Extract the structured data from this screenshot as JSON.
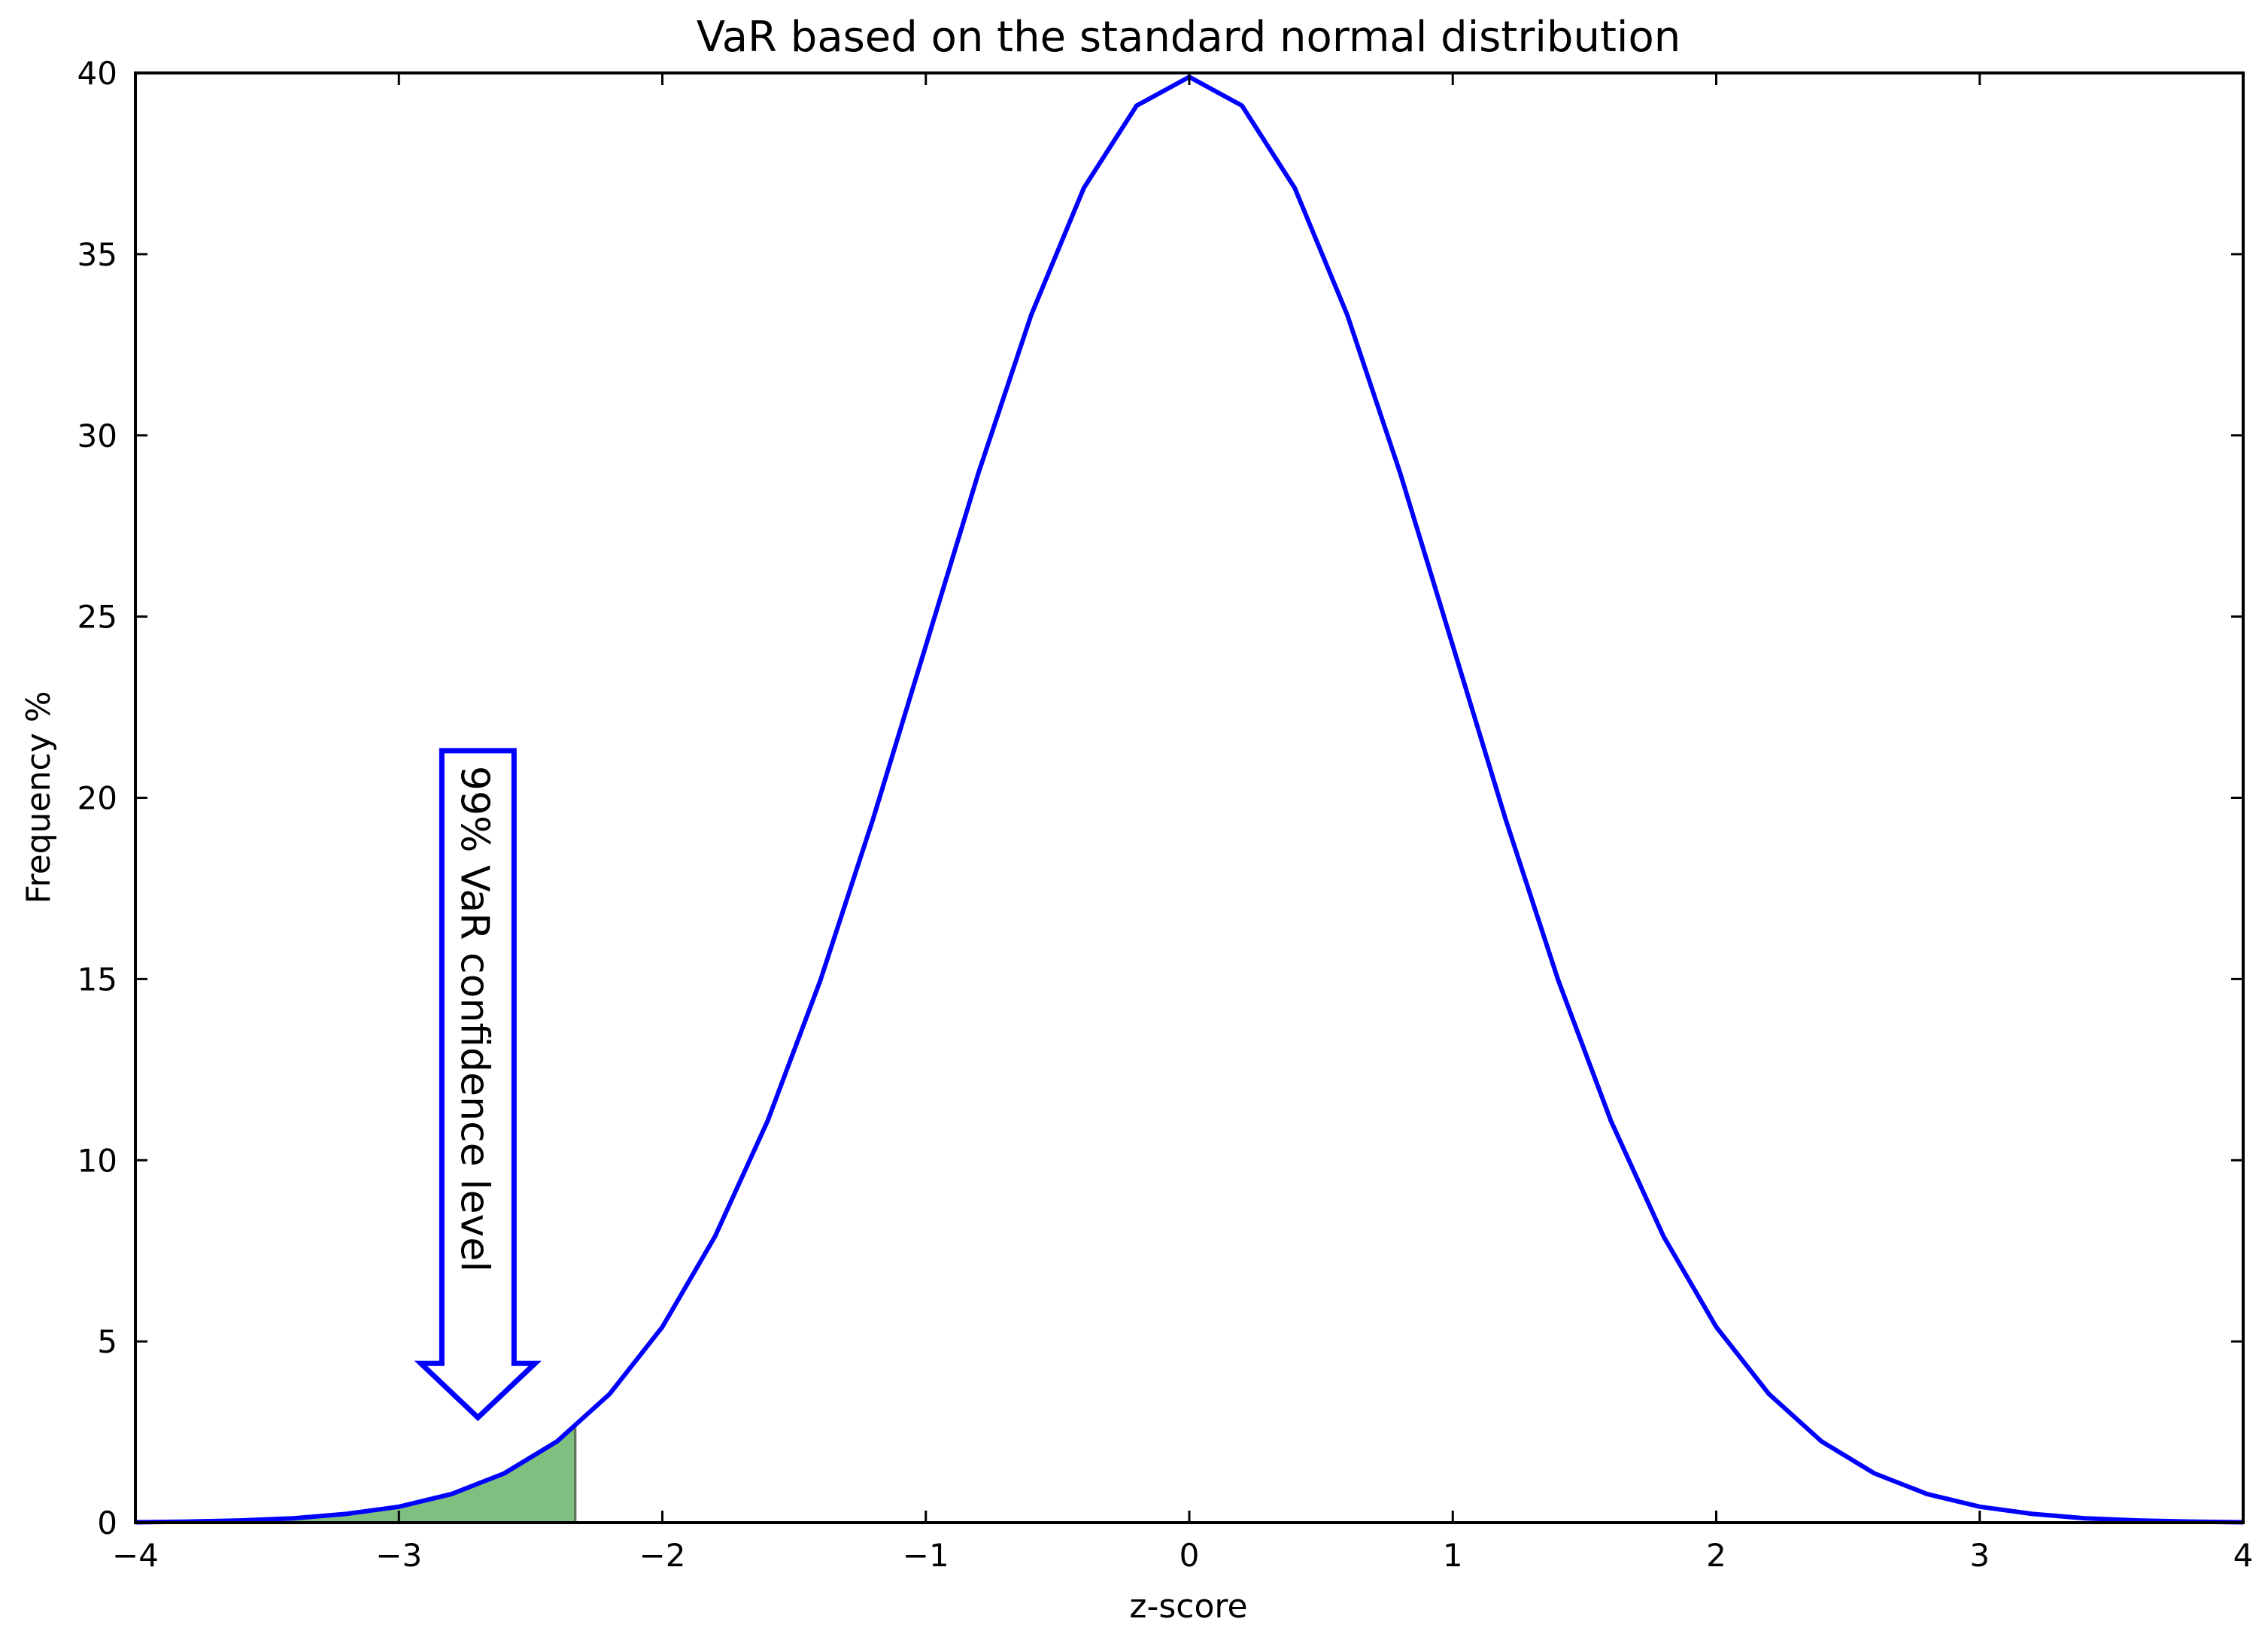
{
  "chart_data": {
    "type": "line",
    "title": "VaR based on the standard normal distribution",
    "xlabel": "z-score",
    "ylabel": "Frequency %",
    "xlim": [
      -4,
      4
    ],
    "ylim": [
      0,
      40
    ],
    "x_ticks": [
      -4,
      -3,
      -2,
      -1,
      0,
      1,
      2,
      3,
      4
    ],
    "x_tick_labels": [
      "−4",
      "−3",
      "−2",
      "−1",
      "0",
      "1",
      "2",
      "3",
      "4"
    ],
    "y_ticks": [
      0,
      5,
      10,
      15,
      20,
      25,
      30,
      35,
      40
    ],
    "y_tick_labels": [
      "0",
      "5",
      "10",
      "15",
      "20",
      "25",
      "30",
      "35",
      "40"
    ],
    "grid": false,
    "series": [
      {
        "color": "#0000ff",
        "x": [
          -4.0,
          -3.8,
          -3.6,
          -3.4,
          -3.2,
          -3.0,
          -2.8,
          -2.6,
          -2.4,
          -2.2,
          -2.0,
          -1.8,
          -1.6,
          -1.4,
          -1.2,
          -1.0,
          -0.8,
          -0.6,
          -0.4,
          -0.2,
          0.0,
          0.2,
          0.4,
          0.6,
          0.8,
          1.0,
          1.2,
          1.4,
          1.6,
          1.8,
          2.0,
          2.2,
          2.4,
          2.6,
          2.8,
          3.0,
          3.2,
          3.4,
          3.6,
          3.8,
          4.0
        ],
        "y": [
          0.01,
          0.03,
          0.06,
          0.12,
          0.24,
          0.44,
          0.79,
          1.36,
          2.24,
          3.55,
          5.4,
          7.9,
          11.09,
          14.97,
          19.42,
          24.2,
          28.97,
          33.32,
          36.83,
          39.1,
          39.89,
          39.1,
          36.83,
          33.32,
          28.97,
          24.2,
          19.42,
          14.97,
          11.09,
          7.9,
          5.4,
          3.55,
          2.24,
          1.36,
          0.79,
          0.44,
          0.24,
          0.12,
          0.06,
          0.03,
          0.01
        ]
      }
    ],
    "shaded_region": {
      "x_from": -4.0,
      "x_to": -2.33,
      "color": "#008000",
      "x": [
        -4.0,
        -3.8,
        -3.6,
        -3.4,
        -3.2,
        -3.0,
        -2.8,
        -2.6,
        -2.4,
        -2.33
      ],
      "y": [
        0.01,
        0.03,
        0.06,
        0.12,
        0.24,
        0.44,
        0.79,
        1.36,
        2.24,
        2.64
      ]
    },
    "annotation": {
      "text": "99% VaR confidence level",
      "arrow_x": -2.7,
      "arrow_top": 21.3,
      "arrow_tip": 2.9,
      "color": "#0000ff"
    }
  }
}
